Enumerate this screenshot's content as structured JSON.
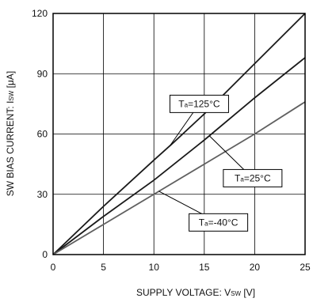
{
  "chart_data": {
    "type": "line",
    "title": "",
    "xlabel": {
      "main": "SUPPLY VOLTAGE: V",
      "sub": "SW",
      "unit": " [V]"
    },
    "ylabel": {
      "main": "SW BIAS CURRENT: I",
      "sub": "SW",
      "unit": " [μA]"
    },
    "xlim": [
      0,
      25
    ],
    "ylim": [
      0,
      120
    ],
    "xticks": [
      "0",
      "5",
      "10",
      "15",
      "20",
      "25"
    ],
    "yticks": [
      "0",
      "30",
      "60",
      "90",
      "120"
    ],
    "grid": true,
    "series": [
      {
        "name": "Ta=125°C",
        "label": {
          "prefix": "T",
          "sub": "a",
          "rest": "=125°C"
        },
        "color": "#1a1a1a",
        "x": [
          0,
          5,
          10,
          12,
          15,
          20,
          25
        ],
        "y": [
          0,
          24,
          47,
          56,
          70,
          95,
          120
        ]
      },
      {
        "name": "Ta=25°C",
        "label": {
          "prefix": "T",
          "sub": "a",
          "rest": "=25°C"
        },
        "color": "#1a1a1a",
        "x": [
          0,
          5,
          10,
          15,
          20,
          25
        ],
        "y": [
          0,
          19,
          37,
          57,
          78,
          98
        ]
      },
      {
        "name": "Ta=-40°C",
        "label": {
          "prefix": "T",
          "sub": "a",
          "rest": "=-40°C"
        },
        "color": "#606060",
        "x": [
          0,
          5,
          10,
          15,
          20,
          25
        ],
        "y": [
          0,
          15,
          30,
          45,
          60,
          76
        ]
      }
    ]
  }
}
